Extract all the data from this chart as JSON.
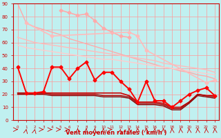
{
  "background_color": "#c0f0f0",
  "grid_color": "#ff9999",
  "xlabel": "Vent moyen/en rafales ( km/h )",
  "xlim": [
    -0.5,
    23.5
  ],
  "ylim": [
    0,
    90
  ],
  "yticks": [
    0,
    10,
    20,
    30,
    40,
    50,
    60,
    70,
    80,
    90
  ],
  "lines": {
    "pink_nodot_top": {
      "x": [
        0,
        1,
        2,
        3,
        4,
        5,
        6,
        7,
        8,
        9,
        10,
        11,
        12,
        13,
        14,
        15,
        16,
        17,
        18,
        19,
        20,
        21,
        22,
        23
      ],
      "y": [
        90,
        75,
        72,
        70,
        68,
        66,
        63,
        61,
        59,
        57,
        55,
        53,
        51,
        49,
        47,
        45,
        43,
        41,
        40,
        38,
        37,
        35,
        34,
        32
      ],
      "color": "#ffaaaa",
      "lw": 1.0
    },
    "pink_nodot_mid1": {
      "x": [
        0,
        1,
        2,
        3,
        4,
        5,
        6,
        7,
        8,
        9,
        10,
        11,
        12,
        13,
        14,
        15,
        16,
        17,
        18,
        19,
        20,
        21,
        22,
        23
      ],
      "y": [
        64,
        62,
        60,
        59,
        58,
        57,
        56,
        55,
        54,
        53,
        52,
        51,
        50,
        49,
        48,
        47,
        46,
        44,
        43,
        42,
        41,
        40,
        39,
        37
      ],
      "color": "#ffbbbb",
      "lw": 1.0
    },
    "pink_nodot_mid2": {
      "x": [
        0,
        1,
        2,
        3,
        4,
        5,
        6,
        7,
        8,
        9,
        10,
        11,
        12,
        13,
        14,
        15,
        16,
        17,
        18,
        19,
        20,
        21,
        22,
        23
      ],
      "y": [
        58,
        56,
        55,
        54,
        53,
        52,
        51,
        50,
        49,
        48,
        47,
        47,
        46,
        45,
        44,
        43,
        42,
        41,
        40,
        39,
        38,
        37,
        36,
        35
      ],
      "color": "#ffcccc",
      "lw": 1.0
    },
    "pink_dot_high": {
      "x": [
        5,
        6,
        7,
        8,
        9,
        10,
        11,
        12,
        13
      ],
      "y": [
        85,
        83,
        81,
        82,
        77,
        71,
        68,
        65,
        64
      ],
      "color": "#ffaaaa",
      "lw": 1.2,
      "marker": "D",
      "ms": 2.5
    },
    "pink_dot_mid": {
      "x": [
        1,
        4,
        13,
        14,
        15,
        22,
        23
      ],
      "y": [
        75,
        65,
        68,
        65,
        54,
        29,
        31
      ],
      "color": "#ffbbbb",
      "lw": 1.2,
      "marker": "D",
      "ms": 2.5
    },
    "red_main": {
      "x": [
        0,
        1,
        2,
        3,
        4,
        5,
        6,
        7,
        8,
        9,
        10,
        11,
        12,
        13,
        14,
        15,
        16,
        17,
        18,
        19,
        20,
        21,
        22,
        23
      ],
      "y": [
        41,
        21,
        21,
        22,
        41,
        41,
        32,
        40,
        45,
        31,
        37,
        37,
        30,
        24,
        14,
        30,
        15,
        15,
        10,
        15,
        20,
        23,
        25,
        19
      ],
      "color": "#ff0000",
      "lw": 1.4,
      "marker": "D",
      "ms": 2.5
    },
    "darkred_flat1": {
      "x": [
        0,
        1,
        2,
        3,
        4,
        5,
        6,
        7,
        8,
        9,
        10,
        11,
        12,
        13,
        14,
        15,
        16,
        17,
        18,
        19,
        20,
        21,
        22,
        23
      ],
      "y": [
        21,
        21,
        21,
        21,
        21,
        21,
        21,
        21,
        21,
        21,
        21,
        21,
        21,
        19,
        14,
        14,
        14,
        13,
        10,
        10,
        14,
        20,
        19,
        19
      ],
      "color": "#cc0000",
      "lw": 1.2
    },
    "darkred_flat2": {
      "x": [
        0,
        1,
        2,
        3,
        4,
        5,
        6,
        7,
        8,
        9,
        10,
        11,
        12,
        13,
        14,
        15,
        16,
        17,
        18,
        19,
        20,
        21,
        22,
        23
      ],
      "y": [
        21,
        21,
        21,
        21,
        20,
        20,
        20,
        20,
        20,
        20,
        19,
        19,
        19,
        18,
        13,
        13,
        13,
        12,
        9,
        9,
        14,
        20,
        19,
        18
      ],
      "color": "#aa0000",
      "lw": 1.0
    },
    "darkred_flat3": {
      "x": [
        0,
        1,
        2,
        3,
        4,
        5,
        6,
        7,
        8,
        9,
        10,
        11,
        12,
        13,
        14,
        15,
        16,
        17,
        18,
        19,
        20,
        21,
        22,
        23
      ],
      "y": [
        20,
        20,
        20,
        20,
        19,
        19,
        19,
        19,
        19,
        19,
        18,
        18,
        18,
        17,
        12,
        12,
        12,
        11,
        8,
        8,
        13,
        19,
        18,
        17
      ],
      "color": "#880000",
      "lw": 1.0
    }
  }
}
